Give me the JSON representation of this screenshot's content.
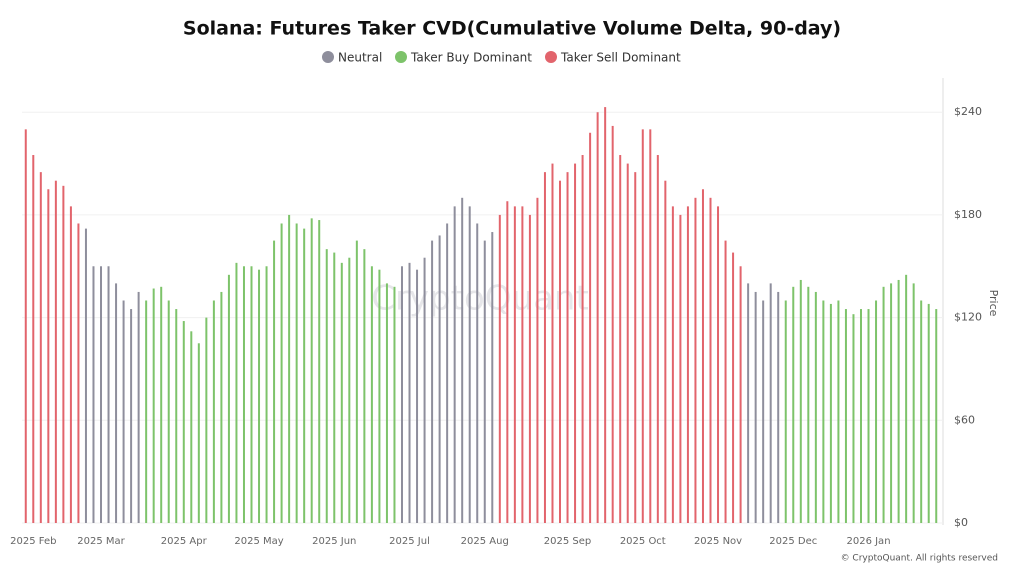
{
  "chart_data": {
    "type": "bar",
    "title": "Solana: Futures Taker CVD(Cumulative Volume Delta, 90-day)",
    "y_label": "Price",
    "watermark": "CryptoQuant",
    "footer": "© CryptoQuant. All rights reserved",
    "categories": [
      null,
      "2025 Feb",
      null,
      null,
      null,
      null,
      null,
      null,
      null,
      null,
      "2025 Mar",
      null,
      null,
      null,
      null,
      null,
      null,
      null,
      null,
      null,
      null,
      "2025 Apr",
      null,
      null,
      null,
      null,
      null,
      null,
      null,
      null,
      null,
      "2025 May",
      null,
      null,
      null,
      null,
      null,
      null,
      null,
      null,
      null,
      "2025 Jun",
      null,
      null,
      null,
      null,
      null,
      null,
      null,
      null,
      null,
      "2025 Jul",
      null,
      null,
      null,
      null,
      null,
      null,
      null,
      null,
      null,
      "2025 Aug",
      null,
      null,
      null,
      null,
      null,
      null,
      null,
      null,
      null,
      null,
      "2025 Sep",
      null,
      null,
      null,
      null,
      null,
      null,
      null,
      null,
      null,
      "2025 Oct",
      null,
      null,
      null,
      null,
      null,
      null,
      null,
      null,
      null,
      "2025 Nov",
      null,
      null,
      null,
      null,
      null,
      null,
      null,
      null,
      null,
      "2025 Dec",
      null,
      null,
      null,
      null,
      null,
      null,
      null,
      null,
      null,
      "2026 Jan",
      null,
      null,
      null,
      null,
      null,
      null,
      null,
      null,
      null
    ],
    "series": [
      {
        "name": "Neutral",
        "color": "#8e8e9c",
        "values": [
          null,
          null,
          null,
          null,
          null,
          null,
          null,
          null,
          172,
          150,
          150,
          150,
          140,
          130,
          125,
          135,
          null,
          null,
          null,
          null,
          null,
          null,
          null,
          null,
          null,
          null,
          null,
          null,
          null,
          null,
          null,
          null,
          null,
          null,
          null,
          null,
          null,
          null,
          null,
          null,
          null,
          null,
          null,
          null,
          null,
          null,
          null,
          null,
          null,
          null,
          150,
          152,
          148,
          155,
          165,
          168,
          175,
          185,
          190,
          185,
          175,
          165,
          170,
          null,
          null,
          null,
          null,
          null,
          null,
          null,
          null,
          null,
          null,
          null,
          null,
          null,
          null,
          null,
          null,
          null,
          null,
          null,
          null,
          null,
          null,
          null,
          null,
          null,
          null,
          null,
          null,
          null,
          null,
          null,
          null,
          null,
          140,
          135,
          130,
          140,
          135,
          null,
          null,
          null,
          null,
          null,
          null,
          null,
          null,
          null,
          null,
          null,
          null,
          null,
          null,
          null,
          null,
          null,
          null,
          null,
          null,
          null
        ]
      },
      {
        "name": "Taker Buy Dominant",
        "color": "#7dc36a",
        "values": [
          null,
          null,
          null,
          null,
          null,
          null,
          null,
          null,
          null,
          null,
          null,
          null,
          null,
          null,
          null,
          null,
          130,
          137,
          138,
          130,
          125,
          118,
          112,
          105,
          120,
          130,
          135,
          145,
          152,
          150,
          150,
          148,
          150,
          165,
          175,
          180,
          175,
          172,
          178,
          177,
          160,
          158,
          152,
          155,
          165,
          160,
          150,
          148,
          140,
          138,
          null,
          null,
          null,
          null,
          null,
          null,
          null,
          null,
          null,
          null,
          null,
          null,
          null,
          null,
          null,
          null,
          null,
          null,
          null,
          null,
          null,
          null,
          null,
          null,
          null,
          null,
          null,
          null,
          null,
          null,
          null,
          null,
          null,
          null,
          null,
          null,
          null,
          null,
          null,
          null,
          null,
          null,
          null,
          null,
          null,
          null,
          null,
          null,
          null,
          null,
          null,
          130,
          138,
          142,
          138,
          135,
          130,
          128,
          130,
          125,
          122,
          125,
          125,
          130,
          138,
          140,
          142,
          145,
          140,
          130,
          128,
          125
        ]
      },
      {
        "name": "Taker Sell Dominant",
        "color": "#e2646c",
        "values": [
          230,
          215,
          205,
          195,
          200,
          197,
          185,
          175,
          null,
          null,
          null,
          null,
          null,
          null,
          null,
          null,
          null,
          null,
          null,
          null,
          null,
          null,
          null,
          null,
          null,
          null,
          null,
          null,
          null,
          null,
          null,
          null,
          null,
          null,
          null,
          null,
          null,
          null,
          null,
          null,
          null,
          null,
          null,
          null,
          null,
          null,
          null,
          null,
          null,
          null,
          null,
          null,
          null,
          null,
          null,
          null,
          null,
          null,
          null,
          null,
          null,
          null,
          null,
          180,
          188,
          185,
          185,
          180,
          190,
          205,
          210,
          200,
          205,
          210,
          215,
          228,
          240,
          243,
          232,
          215,
          210,
          205,
          230,
          230,
          215,
          200,
          185,
          180,
          185,
          190,
          195,
          190,
          185,
          165,
          158,
          150,
          null,
          null,
          null,
          null,
          null,
          null,
          null,
          null,
          null,
          null,
          null,
          null,
          null,
          null,
          null,
          null,
          null,
          null,
          null,
          null,
          null,
          null,
          null,
          null,
          null,
          null
        ]
      }
    ],
    "ylim": [
      0,
      260
    ],
    "yticks": [
      {
        "value": 0,
        "label": "$0"
      },
      {
        "value": 60,
        "label": "$60"
      },
      {
        "value": 120,
        "label": "$120"
      },
      {
        "value": 180,
        "label": "$180"
      },
      {
        "value": 240,
        "label": "$240"
      }
    ],
    "grid": true
  }
}
